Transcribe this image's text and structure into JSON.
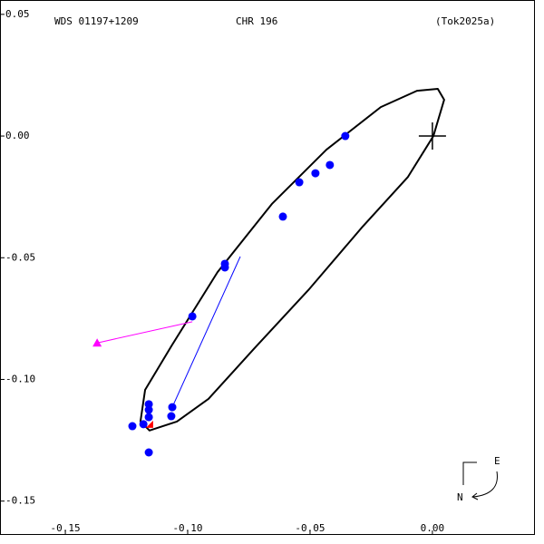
{
  "chart_data": {
    "type": "orbit",
    "title": "WDS 01197+1209",
    "subtitle": "CHR 196",
    "reference": "(Tok2025a)",
    "compass": {
      "east": "E",
      "north": "N"
    },
    "xlim": [
      -0.1767,
      0.0419
    ],
    "ylim": [
      0.0559,
      -0.1639
    ],
    "xticks": [
      {
        "value": -0.15,
        "label": "-0.15"
      },
      {
        "value": -0.1,
        "label": "-0.10"
      },
      {
        "value": -0.05,
        "label": "-0.05"
      },
      {
        "value": 0,
        "label": "0.00"
      }
    ],
    "yticks": [
      {
        "value": 0.05,
        "label": "0.05"
      },
      {
        "value": 0,
        "label": "0.00"
      },
      {
        "value": -0.05,
        "label": "-0.05"
      },
      {
        "value": -0.1,
        "label": "-0.10"
      },
      {
        "value": -0.15,
        "label": "-0.15"
      }
    ],
    "orbit": {
      "color": "#000000",
      "x": [
        0.0022,
        0.0048,
        0.0004,
        -0.01,
        -0.0285,
        -0.0507,
        -0.073,
        -0.0915,
        -0.1044,
        -0.1156,
        -0.1193,
        -0.1174,
        -0.1063,
        -0.0878,
        -0.0656,
        -0.0433,
        -0.0211,
        -0.0063
      ],
      "y": [
        0.0194,
        0.0149,
        0.0,
        -0.0168,
        -0.0372,
        -0.0633,
        -0.0875,
        -0.108,
        -0.1173,
        -0.121,
        -0.1173,
        -0.1043,
        -0.0857,
        -0.0559,
        -0.0279,
        -0.0056,
        0.0119,
        0.0186
      ]
    },
    "observations": {
      "color": "#0000ff",
      "x": [
        -0.0356,
        -0.0419,
        -0.0478,
        -0.0544,
        -0.0611,
        -0.0848,
        -0.0848,
        -0.0981,
        -0.1063,
        -0.1067,
        -0.1159,
        -0.1159,
        -0.1159,
        -0.1181,
        -0.1226,
        -0.1159
      ],
      "y": [
        0.0,
        -0.0119,
        -0.0153,
        -0.019,
        -0.0331,
        -0.0525,
        -0.054,
        -0.0741,
        -0.1114,
        -0.1151,
        -0.1102,
        -0.1125,
        -0.1155,
        -0.1184,
        -0.1192,
        -0.13
      ]
    },
    "predicted": {
      "color": "#ff0000",
      "x": [
        -0.1156
      ],
      "y": [
        -0.1184
      ]
    },
    "node_line": {
      "color": "#0000ff",
      "x": [
        -0.1063,
        -0.0785
      ],
      "y": [
        -0.1114,
        -0.0495
      ]
    },
    "motion_arrow": {
      "color": "#ff00ff",
      "x": [
        -0.0981,
        -0.137
      ],
      "y": [
        -0.0763,
        -0.085
      ]
    },
    "primary": {
      "x": 0,
      "y": 0
    }
  }
}
